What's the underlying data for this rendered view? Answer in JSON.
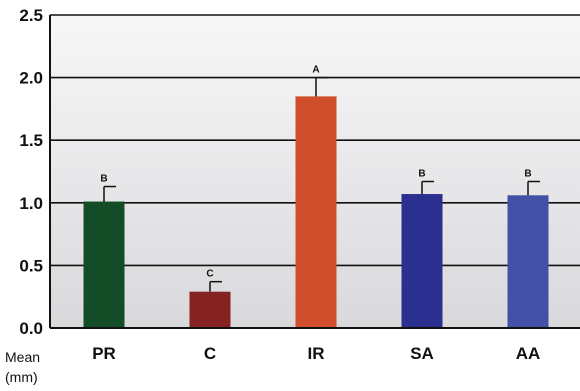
{
  "chart_data": {
    "type": "bar",
    "categories": [
      "PR",
      "C",
      "IR",
      "SA",
      "AA"
    ],
    "values": [
      1.01,
      0.29,
      1.85,
      1.07,
      1.06
    ],
    "errors": [
      0.12,
      0.08,
      0.15,
      0.1,
      0.11
    ],
    "significance": [
      "B",
      "C",
      "A",
      "B",
      "B"
    ],
    "colors": [
      "#134d28",
      "#872223",
      "#d04e2c",
      "#2b2f8f",
      "#4450a5"
    ],
    "ylabel": [
      "Mean",
      "(mm)"
    ],
    "ylim": [
      0,
      2.5
    ],
    "yticks": [
      "0.0",
      "0.5",
      "1.0",
      "1.5",
      "2.0",
      "2.5"
    ],
    "grid": true,
    "legend": "none"
  }
}
